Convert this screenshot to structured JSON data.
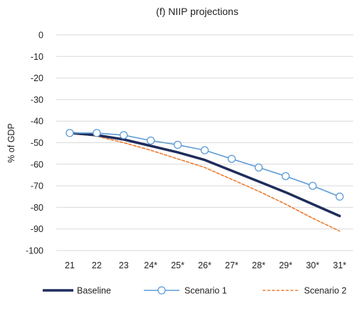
{
  "chart_data": {
    "type": "line",
    "title": "(f) NIIP projections",
    "xlabel": "",
    "ylabel": "% of GDP",
    "categories": [
      "21",
      "22",
      "23",
      "24*",
      "25*",
      "26*",
      "27*",
      "28*",
      "29*",
      "30*",
      "31*"
    ],
    "ylim": [
      -100,
      0
    ],
    "yticks": [
      0,
      -10,
      -20,
      -30,
      -40,
      -50,
      -60,
      -70,
      -80,
      -90,
      -100
    ],
    "grid": true,
    "legend_position": "bottom",
    "series": [
      {
        "name": "Baseline",
        "color": "#1f2d5c",
        "style": "solid-thick",
        "values": [
          -45.5,
          -46.5,
          -48.5,
          -51.5,
          -54.5,
          -58,
          -63,
          -68,
          -73,
          -78.5,
          -84
        ]
      },
      {
        "name": "Scenario 1",
        "color": "#5b9bd5",
        "style": "solid-markers",
        "values": [
          -45.5,
          -45.5,
          -46.5,
          -49,
          -51,
          -53.5,
          -57.5,
          -61.5,
          -65.5,
          -70,
          -75
        ]
      },
      {
        "name": "Scenario 2",
        "color": "#ed7d31",
        "style": "dashed",
        "values": [
          -45.5,
          -47,
          -50,
          -53.5,
          -57.5,
          -61.5,
          -67,
          -72.5,
          -78.5,
          -85,
          -91
        ]
      }
    ]
  }
}
